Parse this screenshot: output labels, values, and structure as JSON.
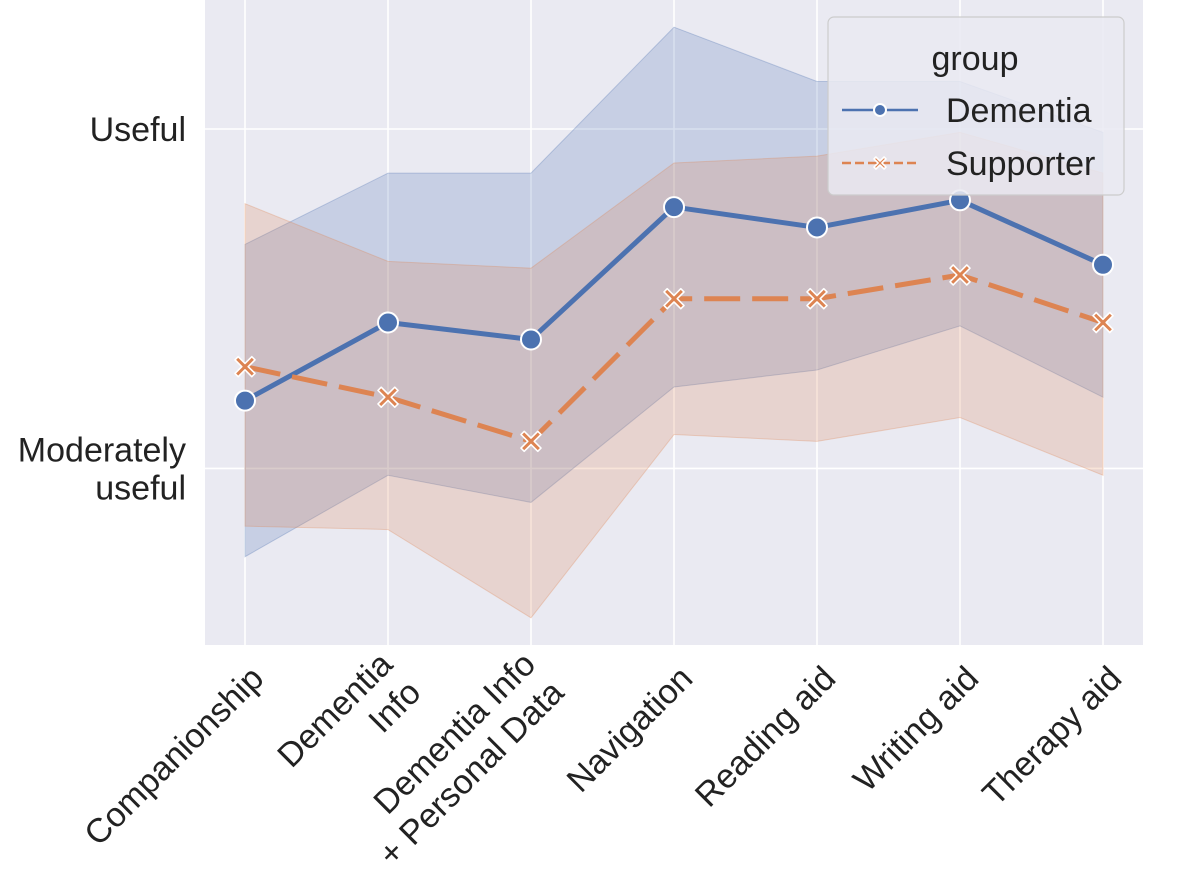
{
  "chart_data": {
    "type": "line",
    "title": "",
    "xlabel": "",
    "ylabel": "",
    "categories": [
      [
        "Companionship"
      ],
      [
        "Dementia",
        "Info"
      ],
      [
        "Dementia Info",
        "+ Personal Data"
      ],
      [
        "Navigation"
      ],
      [
        "Reading aid"
      ],
      [
        "Writing aid"
      ],
      [
        "Therapy aid"
      ]
    ],
    "y_ticks": [
      {
        "value": 3,
        "lines": [
          "Moderately",
          "useful"
        ]
      },
      {
        "value": 4,
        "lines": [
          "Useful"
        ]
      }
    ],
    "ylim": [
      2.48,
      4.38
    ],
    "grid": true,
    "legend": {
      "title": "group",
      "placement": "upper-right"
    },
    "series": [
      {
        "name": "Dementia",
        "color": "#4c72b0",
        "line_style": "solid",
        "marker": "circle",
        "values": [
          3.2,
          3.43,
          3.38,
          3.77,
          3.71,
          3.79,
          3.6
        ],
        "ci_lower": [
          2.74,
          2.98,
          2.9,
          3.24,
          3.29,
          3.42,
          3.21
        ],
        "ci_upper": [
          3.66,
          3.87,
          3.87,
          4.3,
          4.14,
          4.14,
          3.99
        ]
      },
      {
        "name": "Supporter",
        "color": "#dd8452",
        "line_style": "dashed",
        "marker": "x",
        "values": [
          3.3,
          3.21,
          3.08,
          3.5,
          3.5,
          3.57,
          3.43
        ],
        "ci_lower": [
          2.83,
          2.82,
          2.56,
          3.1,
          3.08,
          3.15,
          2.98
        ],
        "ci_upper": [
          3.78,
          3.61,
          3.59,
          3.9,
          3.92,
          3.99,
          3.87
        ]
      }
    ]
  }
}
